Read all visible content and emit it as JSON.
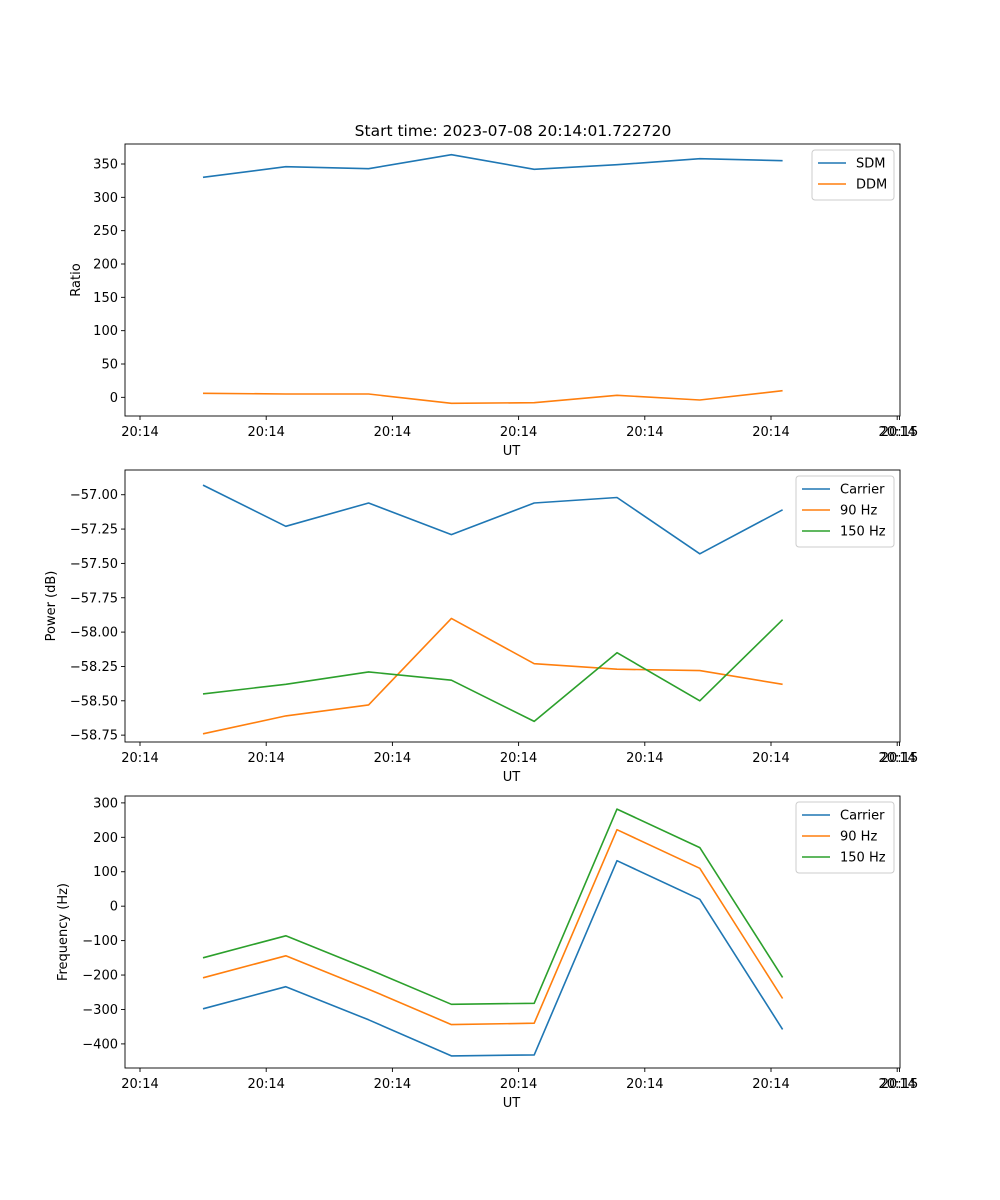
{
  "title": "Start time: 2023-07-08 20:14:01.722720",
  "colors": {
    "blue": "#1f77b4",
    "orange": "#ff7f0e",
    "green": "#2ca02c"
  },
  "chart_data": [
    {
      "type": "line",
      "title": "Start time: 2023-07-08 20:14:01.722720",
      "xlabel": "UT",
      "ylabel": "Ratio",
      "x_tick_labels": [
        "20:14",
        "20:14",
        "20:14",
        "20:14",
        "20:14",
        "20:14",
        "20:14"
      ],
      "x_last_tick_label": "20:15",
      "xlim": [
        -0.5,
        8.5
      ],
      "x": [
        1,
        2,
        3,
        4,
        5,
        6,
        7,
        8
      ],
      "ylim": [
        -28,
        380
      ],
      "yticks": [
        0,
        50,
        100,
        150,
        200,
        250,
        300,
        350
      ],
      "legend": "top-right",
      "series": [
        {
          "name": "SDM",
          "color": "#1f77b4",
          "values": [
            330,
            346,
            343,
            364,
            342,
            349,
            358,
            355
          ]
        },
        {
          "name": "DDM",
          "color": "#ff7f0e",
          "values": [
            6,
            5,
            5,
            -9,
            -8,
            3,
            -4,
            10
          ]
        }
      ]
    },
    {
      "type": "line",
      "xlabel": "UT",
      "ylabel": "Power (dB)",
      "x_tick_labels": [
        "20:14",
        "20:14",
        "20:14",
        "20:14",
        "20:14",
        "20:14",
        "20:14"
      ],
      "x_last_tick_label": "20:15",
      "xlim": [
        -0.5,
        8.5
      ],
      "x": [
        1,
        2,
        3,
        4,
        5,
        6,
        7,
        8
      ],
      "ylim": [
        -58.8,
        -56.82
      ],
      "yticks": [
        -58.75,
        -58.5,
        -58.25,
        -58.0,
        -57.75,
        -57.5,
        -57.25,
        -57.0
      ],
      "ytick_labels": [
        "−58.75",
        "−58.50",
        "−58.25",
        "−58.00",
        "−57.75",
        "−57.50",
        "−57.25",
        "−57.00"
      ],
      "legend": "top-right",
      "series": [
        {
          "name": "Carrier",
          "color": "#1f77b4",
          "values": [
            -56.93,
            -57.23,
            -57.06,
            -57.29,
            -57.06,
            -57.02,
            -57.43,
            -57.11
          ]
        },
        {
          "name": "90 Hz",
          "color": "#ff7f0e",
          "values": [
            -58.74,
            -58.61,
            -58.53,
            -57.9,
            -58.23,
            -58.27,
            -58.28,
            -58.38
          ]
        },
        {
          "name": "150 Hz",
          "color": "#2ca02c",
          "values": [
            -58.45,
            -58.38,
            -58.29,
            -58.35,
            -58.65,
            -58.15,
            -58.5,
            -57.91
          ]
        }
      ]
    },
    {
      "type": "line",
      "xlabel": "UT",
      "ylabel": "Frequency (Hz)",
      "x_tick_labels": [
        "20:14",
        "20:14",
        "20:14",
        "20:14",
        "20:14",
        "20:14",
        "20:14"
      ],
      "x_last_tick_label": "20:15",
      "xlim": [
        -0.5,
        8.5
      ],
      "x": [
        1,
        2,
        3,
        4,
        5,
        6,
        7,
        8
      ],
      "ylim": [
        -470,
        320
      ],
      "yticks": [
        -400,
        -300,
        -200,
        -100,
        0,
        100,
        200,
        300
      ],
      "ytick_labels": [
        "−400",
        "−300",
        "−200",
        "−100",
        "0",
        "100",
        "200",
        "300"
      ],
      "legend": "top-right",
      "series": [
        {
          "name": "Carrier",
          "color": "#1f77b4",
          "values": [
            -298,
            -234,
            -330,
            -435,
            -432,
            132,
            20,
            -358
          ]
        },
        {
          "name": "90 Hz",
          "color": "#ff7f0e",
          "values": [
            -208,
            -144,
            -241,
            -344,
            -340,
            222,
            110,
            -268
          ]
        },
        {
          "name": "150 Hz",
          "color": "#2ca02c",
          "values": [
            -150,
            -86,
            -183,
            -285,
            -282,
            282,
            170,
            -207
          ]
        }
      ]
    }
  ]
}
